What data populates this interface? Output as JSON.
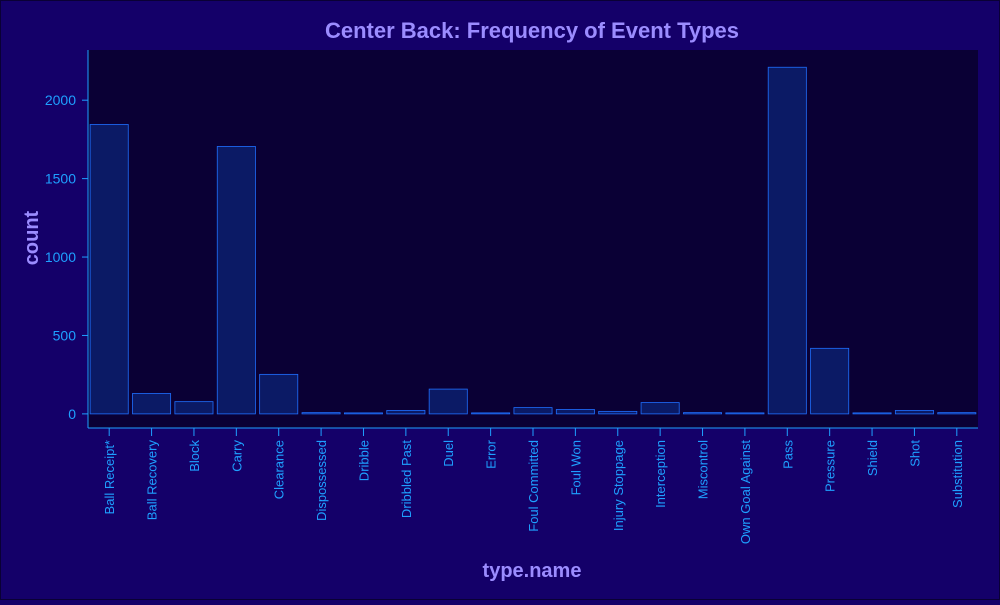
{
  "chart_data": {
    "type": "bar",
    "title": "Center Back: Frequency of Event Types",
    "xlabel": "type.name",
    "ylabel": "count",
    "categories": [
      "Ball Receipt*",
      "Ball Recovery",
      "Block",
      "Carry",
      "Clearance",
      "Dispossessed",
      "Dribble",
      "Dribbled Past",
      "Duel",
      "Error",
      "Foul Committed",
      "Foul Won",
      "Injury Stoppage",
      "Interception",
      "Miscontrol",
      "Own Goal Against",
      "Pass",
      "Pressure",
      "Shield",
      "Shot",
      "Substitution"
    ],
    "values": [
      1845,
      130,
      78,
      1705,
      252,
      8,
      6,
      22,
      158,
      2,
      40,
      28,
      16,
      72,
      8,
      1,
      2210,
      418,
      2,
      22,
      8
    ],
    "yticks": [
      0,
      500,
      1000,
      1500,
      2000
    ],
    "ylim": [
      -90,
      2320
    ],
    "grid": false,
    "colors": {
      "page_background": "#140069",
      "plot_background": "#0a0035",
      "bar_fill": "#0b1a65",
      "bar_stroke": "#1f6fff",
      "axis": "#1ea0ff",
      "tick_label": "#1ea0ff",
      "title": "#9b8cff"
    }
  }
}
